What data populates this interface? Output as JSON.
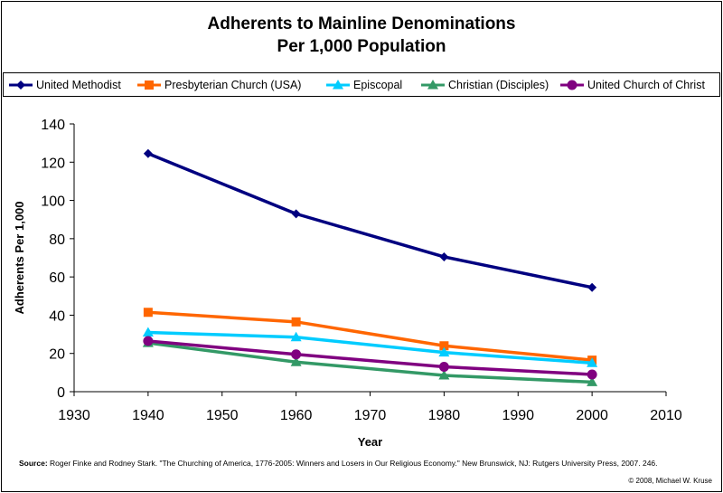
{
  "title_lines": [
    "Adherents to Mainline Denominations",
    "Per 1,000 Population"
  ],
  "source_label": "Source:",
  "source_text": "Roger Finke and Rodney Stark. \"The Churching of America, 1776-2005: Winners and Losers in Our Religious Economy.\" New Brunswick, NJ: Rutgers University Press, 2007. 246.",
  "copyright": "© 2008, Michael W. Kruse",
  "chart_data": {
    "type": "line",
    "title": "Adherents to Mainline Denominations Per 1,000 Population",
    "xlabel": "Year",
    "ylabel": "Adherents Per 1,000",
    "xlim": [
      1930,
      2010
    ],
    "ylim": [
      0,
      140
    ],
    "xticks": [
      1930,
      1940,
      1950,
      1960,
      1970,
      1980,
      1990,
      2000,
      2010
    ],
    "yticks": [
      0,
      20,
      40,
      60,
      80,
      100,
      120,
      140
    ],
    "grid": false,
    "legend_position": "top",
    "x": [
      1940,
      1960,
      1980,
      2000
    ],
    "series": [
      {
        "name": "United Methodist",
        "values": [
          124.5,
          93,
          70.5,
          54.5
        ],
        "color": "#000080",
        "marker": "diamond"
      },
      {
        "name": "Presbyterian Church (USA)",
        "values": [
          41.5,
          36.5,
          24,
          16.5
        ],
        "color": "#ff6600",
        "marker": "square"
      },
      {
        "name": "Episcopal",
        "values": [
          31,
          28.5,
          20.5,
          15
        ],
        "color": "#00ccff",
        "marker": "triangle"
      },
      {
        "name": "Christian (Disciples)",
        "values": [
          25.5,
          15.5,
          8.5,
          5
        ],
        "color": "#339966",
        "marker": "triangle"
      },
      {
        "name": "United Church of Christ",
        "values": [
          26.5,
          19.5,
          13,
          9
        ],
        "color": "#800080",
        "marker": "circle"
      }
    ]
  }
}
